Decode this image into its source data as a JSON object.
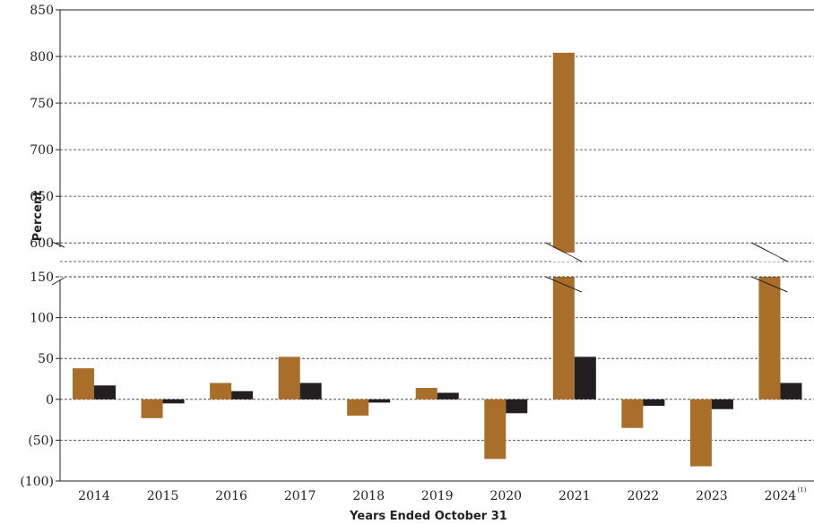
{
  "chart_data": {
    "type": "bar",
    "title": "",
    "xlabel": "Years Ended October 31",
    "ylabel": "Percent",
    "categories": [
      "2014",
      "2015",
      "2016",
      "2017",
      "2018",
      "2019",
      "2020",
      "2021",
      "2022",
      "2023",
      "2024"
    ],
    "category_footnotes": [
      "",
      "",
      "",
      "",
      "",
      "",
      "",
      "",
      "",
      "",
      "(1)"
    ],
    "series": [
      {
        "color": "#A86E2A",
        "values": [
          38,
          -23,
          20,
          52,
          -20,
          14,
          -73,
          804,
          -35,
          -82,
          587
        ]
      },
      {
        "color": "#231F20",
        "values": [
          17,
          -5,
          10,
          20,
          -4,
          8,
          -17,
          52,
          -8,
          -12,
          20
        ]
      }
    ],
    "broken_axis": true,
    "lower_segment": {
      "ylim": [
        -100,
        150
      ],
      "ticks": [
        -100,
        -50,
        0,
        50,
        100,
        150
      ],
      "tick_labels": [
        "(100)",
        "(50)",
        "0",
        "50",
        "100",
        "150"
      ]
    },
    "upper_segment": {
      "ylim": [
        580,
        850
      ],
      "ticks": [
        600,
        650,
        700,
        750,
        800,
        850
      ],
      "tick_labels": [
        "600",
        "650",
        "700",
        "750",
        "800",
        "850"
      ]
    },
    "grid": "dashed-horizontal"
  }
}
